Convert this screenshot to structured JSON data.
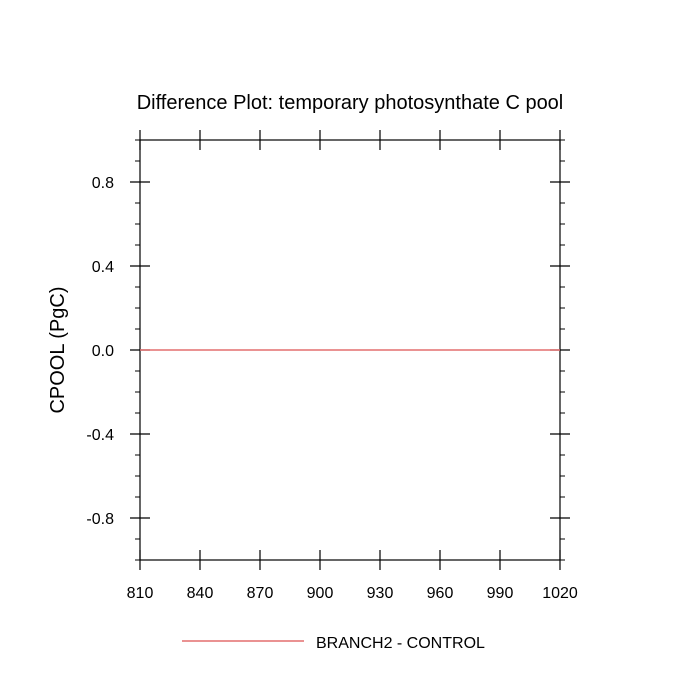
{
  "chart_data": {
    "type": "line",
    "title": "Difference Plot: temporary photosynthate C pool",
    "xlabel": "",
    "ylabel": "CPOOL  (PgC)",
    "xlim": [
      810,
      1020
    ],
    "ylim": [
      -1.0,
      1.0
    ],
    "x_ticks": [
      810,
      840,
      870,
      900,
      930,
      960,
      990,
      1020
    ],
    "y_ticks": [
      -0.8,
      -0.4,
      0.0,
      0.4,
      0.8
    ],
    "y_tick_labels": [
      "-0.8",
      "-0.4",
      "0.0",
      "0.4",
      "0.8"
    ],
    "grid": false,
    "legend_position": "bottom",
    "series": [
      {
        "name": "BRANCH2 - CONTROL",
        "color": "#e36f6f",
        "x": [
          810,
          1020
        ],
        "y": [
          0.0,
          0.0
        ]
      }
    ]
  }
}
